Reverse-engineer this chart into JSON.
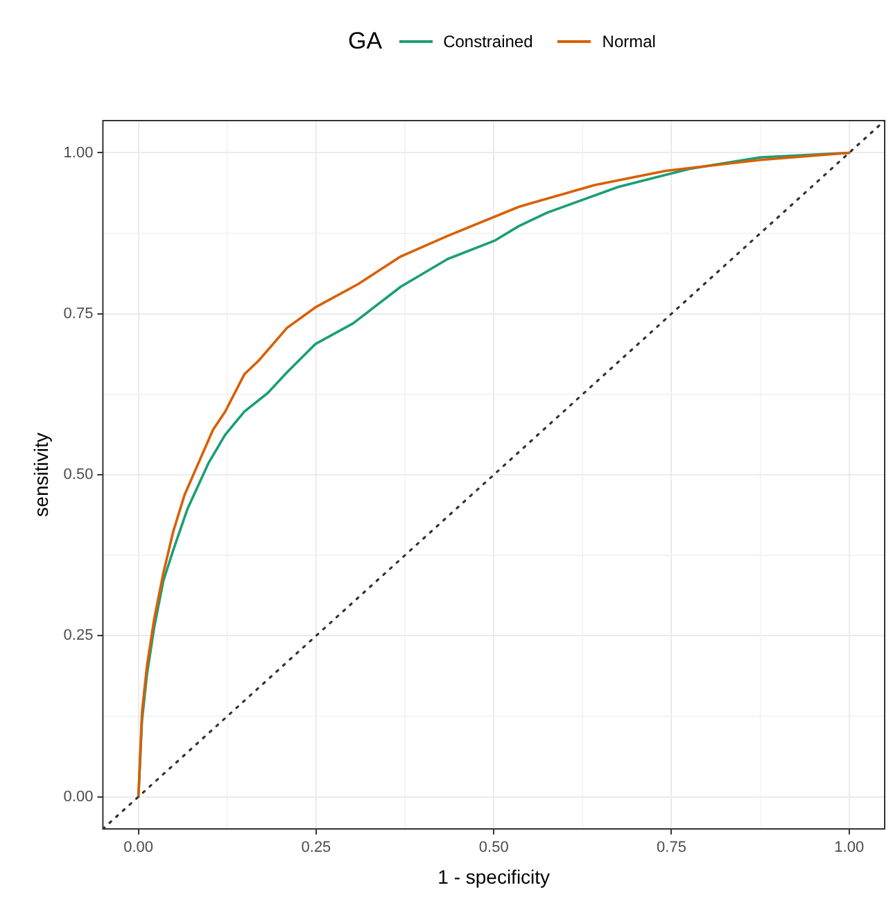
{
  "chart_data": {
    "type": "line",
    "xlabel": "1 - specificity",
    "ylabel": "sensitivity",
    "legend_title": "GA",
    "legend": "top",
    "grid": true,
    "xlim": [
      -0.05,
      1.05
    ],
    "ylim": [
      -0.05,
      1.05
    ],
    "xticks": [
      {
        "value": 0,
        "label": "0.00"
      },
      {
        "value": 0.25,
        "label": "0.25"
      },
      {
        "value": 0.5,
        "label": "0.50"
      },
      {
        "value": 0.75,
        "label": "0.75"
      },
      {
        "value": 1,
        "label": "1.00"
      }
    ],
    "yticks": [
      {
        "value": 0,
        "label": "0.00"
      },
      {
        "value": 0.25,
        "label": "0.25"
      },
      {
        "value": 0.5,
        "label": "0.50"
      },
      {
        "value": 0.75,
        "label": "0.75"
      },
      {
        "value": 1,
        "label": "1.00"
      }
    ],
    "series": [
      {
        "name": "Constrained",
        "color": "#1b9e77",
        "x": [
          0,
          0.005,
          0.012,
          0.022,
          0.035,
          0.049,
          0.069,
          0.099,
          0.122,
          0.149,
          0.182,
          0.209,
          0.249,
          0.302,
          0.369,
          0.435,
          0.502,
          0.535,
          0.575,
          0.675,
          0.775,
          0.875,
          1
        ],
        "values": [
          0,
          0.118,
          0.19,
          0.262,
          0.335,
          0.383,
          0.447,
          0.519,
          0.562,
          0.598,
          0.627,
          0.659,
          0.703,
          0.735,
          0.792,
          0.835,
          0.864,
          0.886,
          0.907,
          0.947,
          0.975,
          0.993,
          1
        ]
      },
      {
        "name": "Normal",
        "color": "#d95f02",
        "x": [
          0,
          0.005,
          0.012,
          0.022,
          0.035,
          0.049,
          0.065,
          0.082,
          0.105,
          0.122,
          0.149,
          0.169,
          0.209,
          0.249,
          0.309,
          0.369,
          0.435,
          0.535,
          0.642,
          0.742,
          0.875,
          1
        ],
        "values": [
          0,
          0.131,
          0.203,
          0.275,
          0.347,
          0.412,
          0.469,
          0.512,
          0.57,
          0.598,
          0.656,
          0.677,
          0.728,
          0.76,
          0.796,
          0.839,
          0.871,
          0.916,
          0.95,
          0.972,
          0.989,
          1
        ]
      },
      {
        "color": "#333333",
        "line_style": "dotted",
        "x": [
          -0.05,
          1.05
        ],
        "values": [
          -0.05,
          1.05
        ]
      }
    ]
  }
}
